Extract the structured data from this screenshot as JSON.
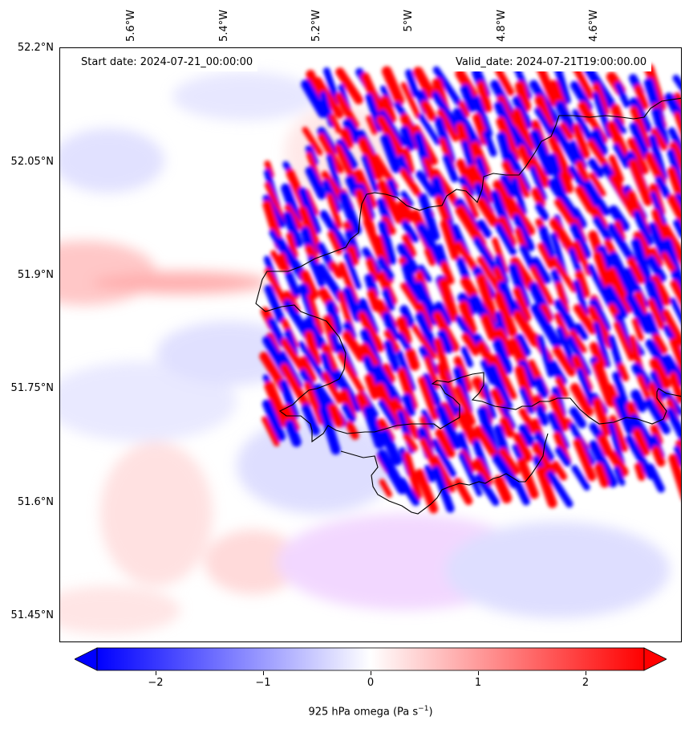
{
  "header": {
    "start_date": "Start date: 2024-07-21_00:00:00",
    "valid_date": "Valid_date: 2024-07-21T19:00:00.00"
  },
  "axes": {
    "lat_labels": [
      "52.2°N",
      "52.05°N",
      "51.9°N",
      "51.75°N",
      "51.6°N",
      "51.45°N"
    ],
    "lon_labels": [
      "5.6°W",
      "5.4°W",
      "5.2°W",
      "5°W",
      "4.8°W",
      "4.6°W"
    ]
  },
  "colorbar": {
    "ticks": [
      "−2",
      "−1",
      "0",
      "1",
      "2"
    ],
    "label_prefix": "925 hPa omega (Pa s",
    "label_exp": "−1",
    "label_suffix": ")",
    "min_color": "#0000ff",
    "mid_color": "#ffffff",
    "max_color": "#ff0000"
  }
}
